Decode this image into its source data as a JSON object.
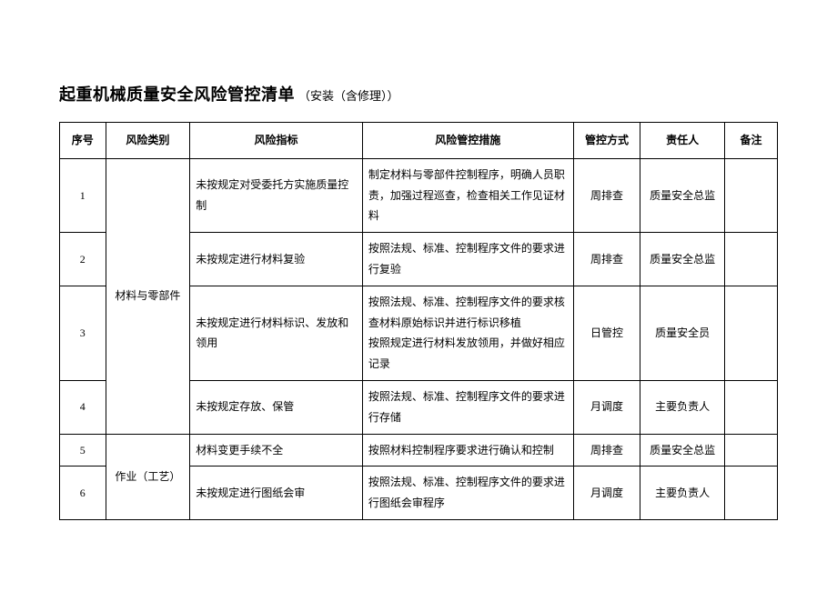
{
  "title": {
    "main": "起重机械质量安全风险管控清单",
    "sub": "（安装（含修理））"
  },
  "table": {
    "headers": {
      "seq": "序号",
      "category": "风险类别",
      "indicator": "风险指标",
      "measure": "风险管控措施",
      "mode": "管控方式",
      "responsible": "责任人",
      "note": "备注"
    },
    "categories": {
      "cat1": "材料与零部件",
      "cat2": "作业（工艺）"
    },
    "rows": [
      {
        "seq": "1",
        "indicator": "未按规定对受委托方实施质量控制",
        "measure": "制定材料与零部件控制程序，明确人员职责，加强过程巡查，检查相关工作见证材料",
        "mode": "周排查",
        "responsible": "质量安全总监",
        "note": ""
      },
      {
        "seq": "2",
        "indicator": "未按规定进行材料复验",
        "measure": "按照法规、标准、控制程序文件的要求进行复验",
        "mode": "周排查",
        "responsible": "质量安全总监",
        "note": ""
      },
      {
        "seq": "3",
        "indicator": "未按规定进行材料标识、发放和领用",
        "measure": "按照法规、标准、控制程序文件的要求核查材料原始标识并进行标识移植\n按照规定进行材料发放领用，并做好相应记录",
        "mode": "日管控",
        "responsible": "质量安全员",
        "note": ""
      },
      {
        "seq": "4",
        "indicator": "未按规定存放、保管",
        "measure": "按照法规、标准、控制程序文件的要求进行存储",
        "mode": "月调度",
        "responsible": "主要负责人",
        "note": ""
      },
      {
        "seq": "5",
        "indicator": "材料变更手续不全",
        "measure": "按照材料控制程序要求进行确认和控制",
        "mode": "周排查",
        "responsible": "质量安全总监",
        "note": ""
      },
      {
        "seq": "6",
        "indicator": "未按规定进行图纸会审",
        "measure": "按照法规、标准、控制程序文件的要求进行图纸会审程序",
        "mode": "月调度",
        "responsible": "主要负责人",
        "note": ""
      }
    ]
  }
}
